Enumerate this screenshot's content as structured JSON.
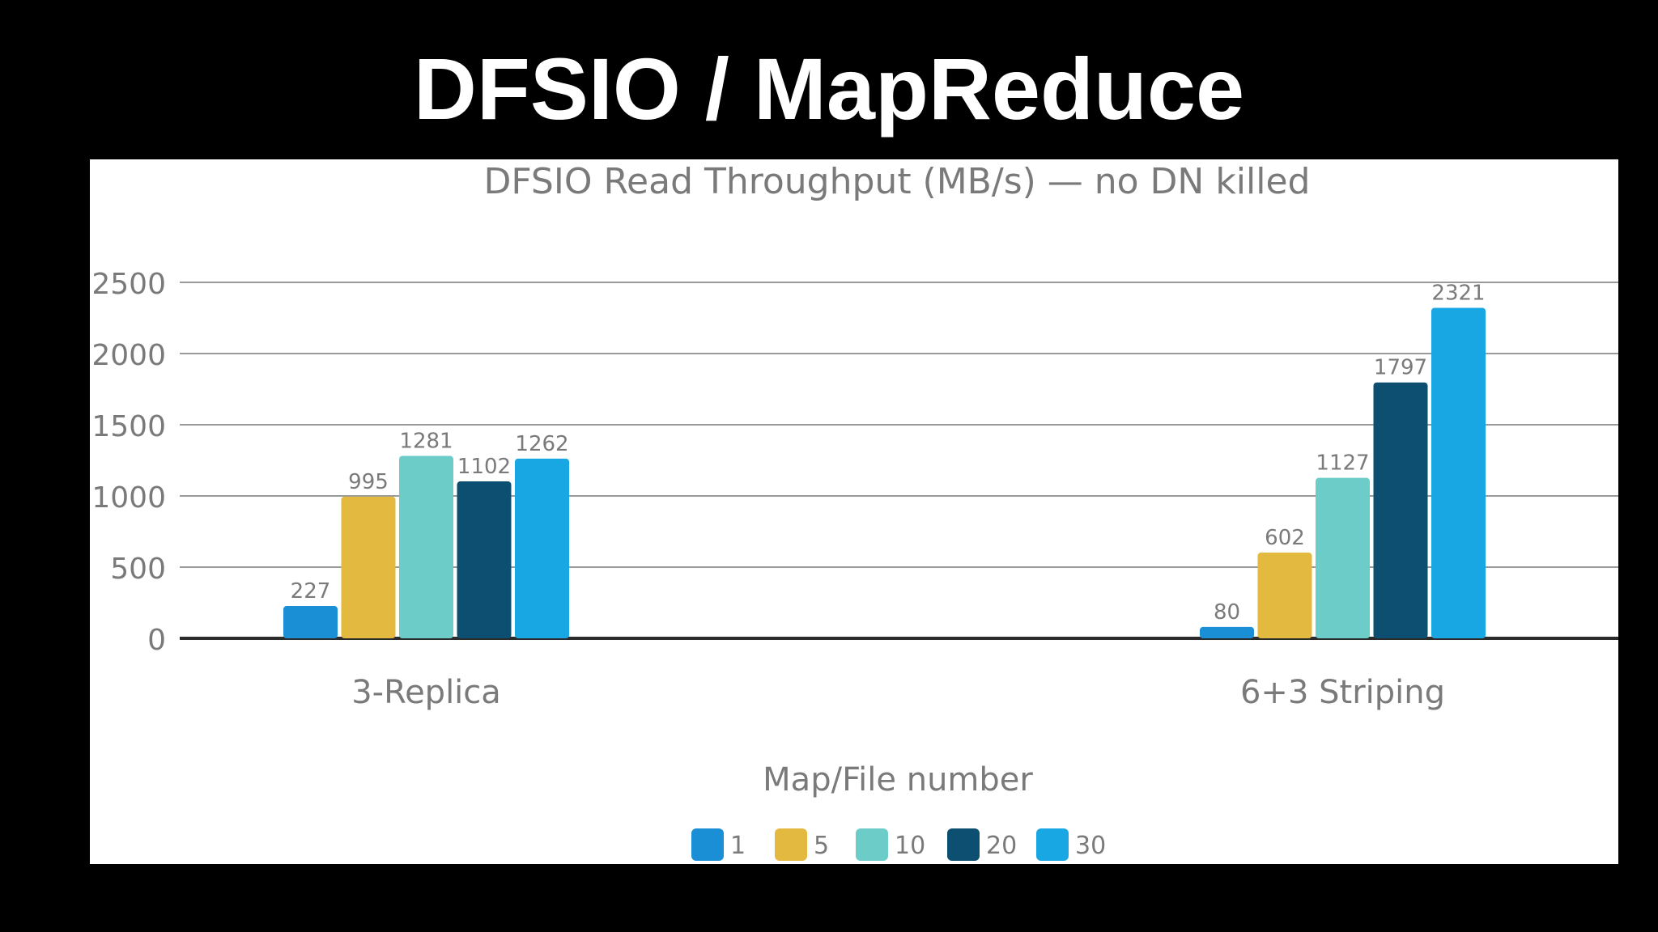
{
  "slide": {
    "title": "DFSIO / MapReduce"
  },
  "chart_data": {
    "type": "bar",
    "title": "DFSIO Read Throughput (MB/s) — no DN killed",
    "xlabel": "Map/File number",
    "ylabel": "",
    "categories": [
      "3-Replica",
      "6+3 Striping"
    ],
    "series": [
      {
        "name": "1",
        "values": [
          227,
          80
        ],
        "color": "#1b8fd6"
      },
      {
        "name": "5",
        "values": [
          995,
          602
        ],
        "color": "#e3b93f"
      },
      {
        "name": "10",
        "values": [
          1281,
          1127
        ],
        "color": "#6cccc8"
      },
      {
        "name": "20",
        "values": [
          1102,
          1797
        ],
        "color": "#0c4f70"
      },
      {
        "name": "30",
        "values": [
          1262,
          2321
        ],
        "color": "#18a7e2"
      }
    ],
    "ylim": [
      0,
      2500
    ],
    "yticks": [
      0,
      500,
      1000,
      1500,
      2000,
      2500
    ],
    "grid": true,
    "legend": "bottom-center",
    "show_data_labels": true
  }
}
